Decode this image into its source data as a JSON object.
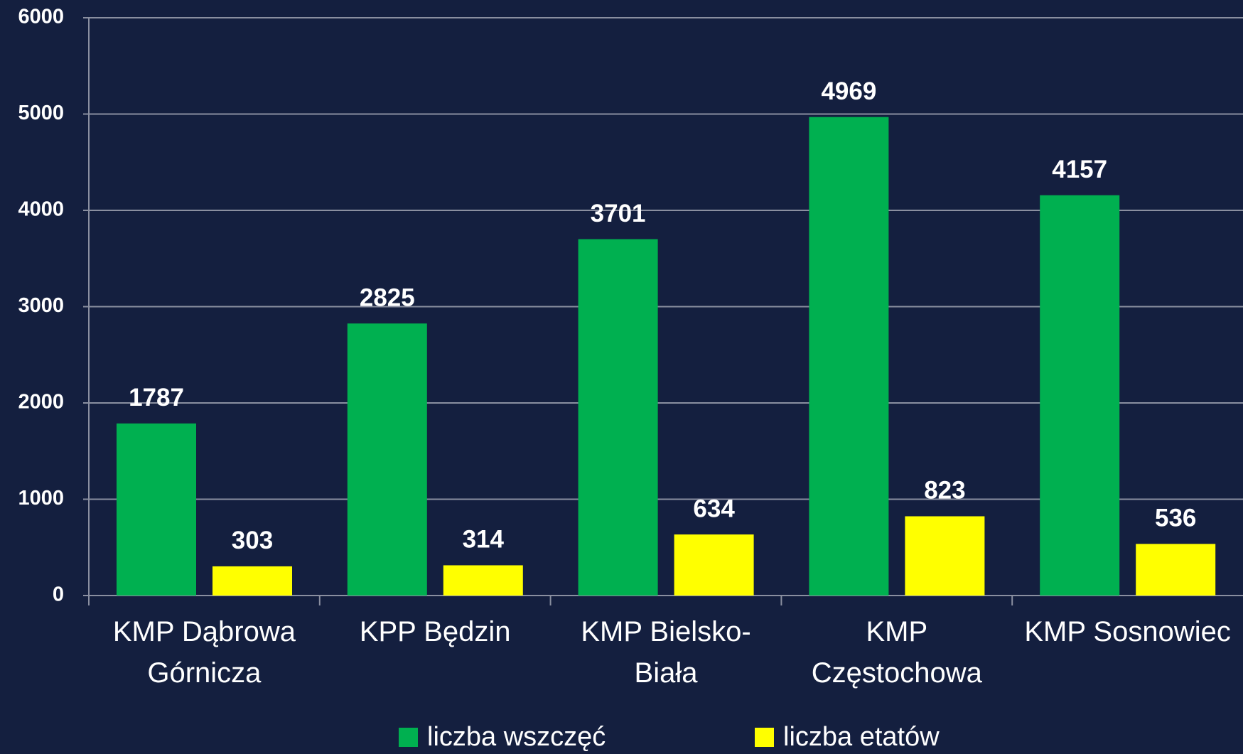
{
  "chart_data": {
    "type": "bar",
    "categories": [
      "KMP Dąbrowa\nGórnicza",
      "KPP Będzin",
      "KMP Bielsko-\nBiała",
      "KMP\nCzęstochowa",
      "KMP Sosnowiec"
    ],
    "series": [
      {
        "name": "liczba wszczęć",
        "color": "#00b050",
        "values": [
          1787,
          2825,
          3701,
          4969,
          4157
        ]
      },
      {
        "name": "liczba etatów",
        "color": "#ffff00",
        "values": [
          303,
          314,
          634,
          823,
          536
        ]
      }
    ],
    "ylim": [
      0,
      6000
    ],
    "yticks": [
      0,
      1000,
      2000,
      3000,
      4000,
      5000,
      6000
    ],
    "grid": true,
    "legend": "bottom"
  }
}
